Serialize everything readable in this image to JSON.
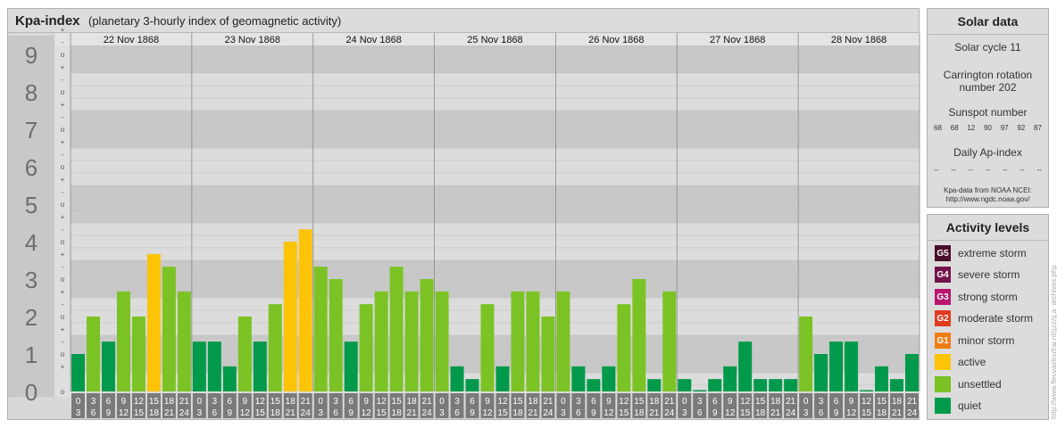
{
  "header": {
    "title": "Kpa-index",
    "subtitle": "(planetary 3-hourly index of geomagnetic activity)"
  },
  "chart_data": {
    "type": "bar",
    "title": "Kpa-index",
    "subtitle": "(planetary 3-hourly index of geomagnetic activity)",
    "ylim": [
      0,
      9
    ],
    "y_ticks": [
      "0",
      "1",
      "2",
      "3",
      "4",
      "5",
      "6",
      "7",
      "8",
      "9"
    ],
    "sub_ticks": [
      "o",
      "-",
      "+"
    ],
    "days": [
      "22 Nov 1868",
      "23 Nov 1868",
      "24 Nov 1868",
      "25 Nov 1868",
      "26 Nov 1868",
      "27 Nov 1868",
      "28 Nov 1868"
    ],
    "interval_starts": [
      "0",
      "3",
      "6",
      "9",
      "12",
      "15",
      "18",
      "21"
    ],
    "interval_ends": [
      "3",
      "6",
      "9",
      "12",
      "15",
      "18",
      "21",
      "24"
    ],
    "values": [
      [
        1.0,
        2.0,
        1.33,
        2.67,
        2.0,
        3.67,
        3.33,
        2.67
      ],
      [
        1.33,
        1.33,
        0.67,
        2.0,
        1.33,
        2.33,
        4.0,
        4.33
      ],
      [
        3.33,
        3.0,
        1.33,
        2.33,
        2.67,
        3.33,
        2.67,
        3.0
      ],
      [
        2.67,
        0.67,
        0.33,
        2.33,
        0.67,
        2.67,
        2.67,
        2.0
      ],
      [
        2.67,
        0.67,
        0.33,
        0.67,
        2.33,
        3.0,
        0.33,
        2.67
      ],
      [
        0.33,
        0.0,
        0.33,
        0.67,
        1.33,
        0.33,
        0.33,
        0.33
      ],
      [
        2.0,
        1.0,
        1.33,
        1.33,
        0.0,
        0.67,
        0.33,
        1.0
      ]
    ],
    "colors": {
      "quiet": "#009a4a",
      "unsettled": "#7bc324",
      "active": "#fdc306"
    }
  },
  "solar_data": {
    "title": "Solar data",
    "cycle": "Solar cycle 11",
    "carrington_line1": "Carrington rotation",
    "carrington_line2": "number 202",
    "sunspot_label": "Sunspot number",
    "sunspot_values": [
      "68",
      "68",
      "12",
      "90",
      "97",
      "92",
      "87"
    ],
    "ap_label": "Daily Ap-index",
    "ap_values": [
      "--",
      "--",
      "--",
      "--",
      "--",
      "--",
      "--"
    ],
    "credit_line1": "Kpa-data from NOAA NCEI:",
    "credit_line2": "http://www.ngdc.noaa.gov/"
  },
  "activity_levels": {
    "title": "Activity levels",
    "items": [
      {
        "badge": "G5",
        "label": "extreme storm",
        "color": "#4a0f2a"
      },
      {
        "badge": "G4",
        "label": "severe storm",
        "color": "#73134a"
      },
      {
        "badge": "G3",
        "label": "strong storm",
        "color": "#b8156d"
      },
      {
        "badge": "G2",
        "label": "moderate storm",
        "color": "#e03c1e"
      },
      {
        "badge": "G1",
        "label": "minor storm",
        "color": "#f07d13"
      },
      {
        "badge": "",
        "label": "active",
        "color": "#fdc306"
      },
      {
        "badge": "",
        "label": "unsettled",
        "color": "#7bc324"
      },
      {
        "badge": "",
        "label": "quiet",
        "color": "#009a4a"
      }
    ]
  },
  "watermark": "http://www.fleuvaxtnufrai.nl/gzz/g.a_archives.php"
}
